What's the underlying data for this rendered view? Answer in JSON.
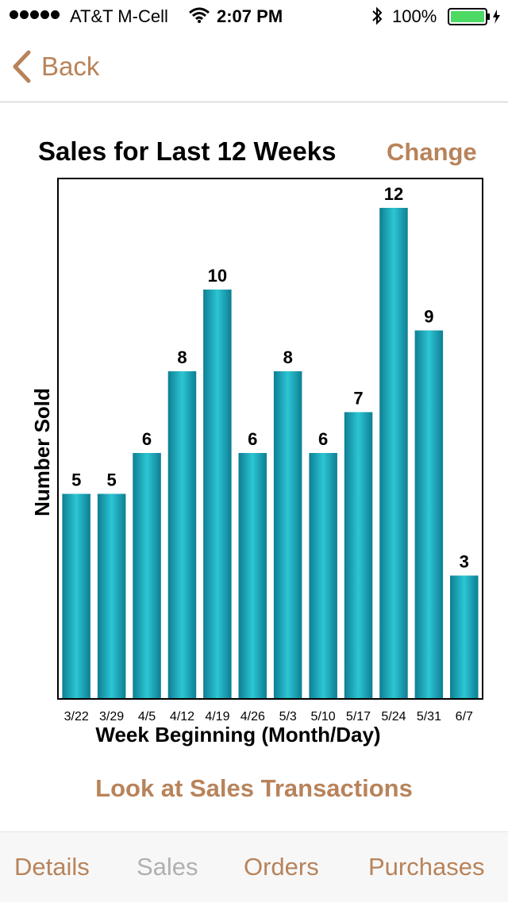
{
  "status_bar": {
    "carrier": "AT&T M-Cell",
    "time": "2:07 PM",
    "battery": "100%",
    "icons": [
      "signal-dots-icon",
      "wifi-icon",
      "bluetooth-icon",
      "battery-icon"
    ],
    "battery_color": "#4cd964"
  },
  "nav": {
    "back_label": "Back",
    "accent_color": "#b8835a"
  },
  "header": {
    "title": "Sales for Last 12 Weeks",
    "change_label": "Change"
  },
  "chart_data": {
    "type": "bar",
    "categories": [
      "3/22",
      "3/29",
      "4/5",
      "4/12",
      "4/19",
      "4/26",
      "5/3",
      "5/10",
      "5/17",
      "5/24",
      "5/31",
      "6/7"
    ],
    "values": [
      5,
      5,
      6,
      8,
      10,
      6,
      8,
      6,
      7,
      12,
      9,
      3
    ],
    "xlabel": "Week Beginning (Month/Day)",
    "ylabel": "Number Sold",
    "ylim": [
      0,
      12.7
    ],
    "bar_color": "#1fb2c4",
    "data_labels": true,
    "grid": false,
    "legend": "none"
  },
  "actions": {
    "transactions_label": "Look at Sales Transactions"
  },
  "tabs": [
    {
      "label": "Details",
      "active": true
    },
    {
      "label": "Sales",
      "active": false
    },
    {
      "label": "Orders",
      "active": true
    },
    {
      "label": "Purchases",
      "active": true
    }
  ]
}
